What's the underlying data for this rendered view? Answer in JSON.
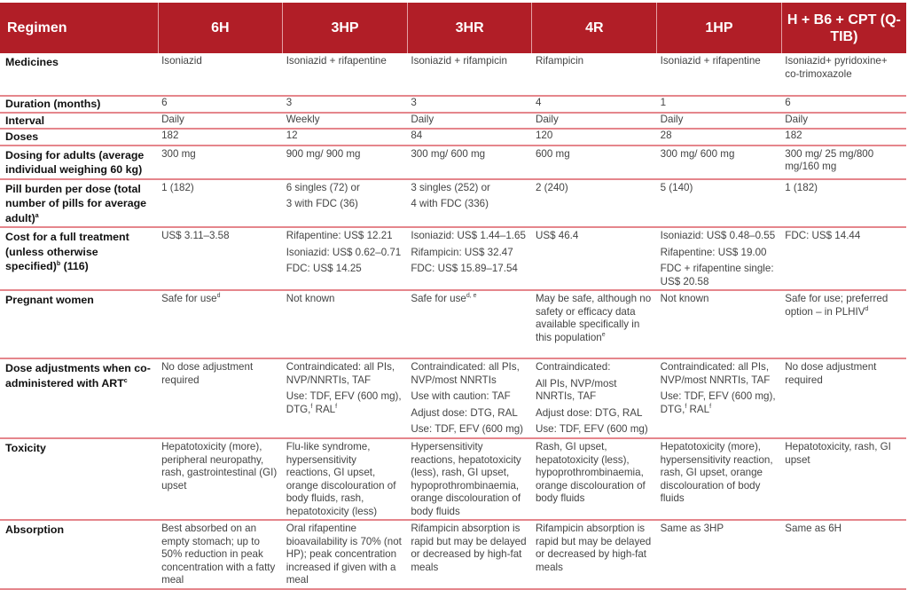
{
  "colors": {
    "header_bg": "#b11e27",
    "row_divider": "#e5868c"
  },
  "header": [
    "Regimen",
    "6H",
    "3HP",
    "3HR",
    "4R",
    "1HP",
    "H + B6 + CPT (Q-TIB)"
  ],
  "rows": [
    {
      "label": [
        [
          "Medicines"
        ]
      ],
      "cells": [
        [
          [
            "Isoniazid"
          ]
        ],
        [
          [
            "Isoniazid + rifapentine"
          ]
        ],
        [
          [
            "Isoniazid + rifampicin"
          ]
        ],
        [
          [
            "Rifampicin"
          ]
        ],
        [
          [
            "Isoniazid + rifapentine"
          ]
        ],
        [
          [
            "Isoniazid+ pyridoxine+ co-trimoxazole"
          ]
        ]
      ]
    },
    {
      "label": [
        [
          "Duration (months)"
        ]
      ],
      "cells": [
        [
          [
            "6"
          ]
        ],
        [
          [
            "3"
          ]
        ],
        [
          [
            "3"
          ]
        ],
        [
          [
            "4"
          ]
        ],
        [
          [
            "1"
          ]
        ],
        [
          [
            "6"
          ]
        ]
      ]
    },
    {
      "label": [
        [
          "Interval"
        ]
      ],
      "cells": [
        [
          [
            "Daily"
          ]
        ],
        [
          [
            "Weekly"
          ]
        ],
        [
          [
            "Daily"
          ]
        ],
        [
          [
            "Daily"
          ]
        ],
        [
          [
            "Daily"
          ]
        ],
        [
          [
            "Daily"
          ]
        ]
      ]
    },
    {
      "label": [
        [
          "Doses"
        ]
      ],
      "cells": [
        [
          [
            "182"
          ]
        ],
        [
          [
            "12"
          ]
        ],
        [
          [
            "84"
          ]
        ],
        [
          [
            "120"
          ]
        ],
        [
          [
            "28"
          ]
        ],
        [
          [
            "182"
          ]
        ]
      ]
    },
    {
      "label": [
        [
          "Dosing for adults (average individual weighing 60 kg)"
        ]
      ],
      "cells": [
        [
          [
            "300 mg"
          ]
        ],
        [
          [
            "900 mg/ 900 mg"
          ]
        ],
        [
          [
            "300 mg/ 600 mg"
          ]
        ],
        [
          [
            "600 mg"
          ]
        ],
        [
          [
            "300 mg/ 600 mg"
          ]
        ],
        [
          [
            "300 mg/ 25 mg/800 mg/160 mg"
          ]
        ]
      ]
    },
    {
      "label": [
        [
          "Pill burden per dose (total number of pills for average adult)",
          {
            "sup": "a"
          }
        ]
      ],
      "cells": [
        [
          [
            "1 (182)"
          ]
        ],
        [
          [
            "6 singles (72) or"
          ],
          [
            "3 with FDC (36)"
          ]
        ],
        [
          [
            "3 singles (252) or"
          ],
          [
            "4 with FDC (336)"
          ]
        ],
        [
          [
            "2 (240)"
          ]
        ],
        [
          [
            "5 (140)"
          ]
        ],
        [
          [
            "1 (182)"
          ]
        ]
      ]
    },
    {
      "label": [
        [
          "Cost for a full treatment (unless otherwise specified)",
          {
            "sup": "b"
          },
          " (116)"
        ]
      ],
      "cells": [
        [
          [
            "US$ 3.11–3.58"
          ]
        ],
        [
          [
            "Rifapentine: US$ 12.21"
          ],
          [
            "Isoniazid: US$ 0.62–0.71"
          ],
          [
            "FDC: US$ 14.25"
          ]
        ],
        [
          [
            "Isoniazid: US$ 1.44–1.65"
          ],
          [
            "Rifampicin: US$ 32.47"
          ],
          [
            "FDC: US$ 15.89–17.54"
          ]
        ],
        [
          [
            "US$ 46.4"
          ]
        ],
        [
          [
            "Isoniazid: US$ 0.48–0.55"
          ],
          [
            "Rifapentine: US$ 19.00"
          ],
          [
            "FDC + rifapentine single: US$ 20.58"
          ]
        ],
        [
          [
            "FDC: US$ 14.44"
          ]
        ]
      ]
    },
    {
      "label": [
        [
          "Pregnant women"
        ]
      ],
      "cells": [
        [
          [
            "Safe for use",
            {
              "sup": "d"
            }
          ]
        ],
        [
          [
            "Not known"
          ]
        ],
        [
          [
            "Safe for use",
            {
              "sup": "d, e"
            }
          ]
        ],
        [
          [
            "May be safe, although no safety or efficacy data available specifically in this population",
            {
              "sup": "e"
            }
          ]
        ],
        [
          [
            "Not known"
          ]
        ],
        [
          [
            "Safe for use; preferred option – in PLHIV",
            {
              "sup": "d"
            }
          ]
        ]
      ]
    },
    {
      "label": [
        [
          "Dose adjustments when co-administered with ART",
          {
            "sup": "c"
          }
        ]
      ],
      "cells": [
        [
          [
            "No dose adjustment required"
          ]
        ],
        [
          [
            "Contraindicated: all PIs, NVP/NNRTIs, TAF"
          ],
          [
            "Use: TDF, EFV (600 mg), DTG,",
            {
              "sup": "f"
            },
            " RAL",
            {
              "sup": "f"
            }
          ]
        ],
        [
          [
            "Contraindicated: all PIs, NVP/most NNRTIs"
          ],
          [
            "Use with caution: TAF"
          ],
          [
            "Adjust dose: DTG, RAL"
          ],
          [
            "Use: TDF, EFV (600 mg)"
          ]
        ],
        [
          [
            "Contraindicated:"
          ],
          [
            "All PIs, NVP/most NNRTIs, TAF"
          ],
          [
            "Adjust dose: DTG, RAL"
          ],
          [
            "Use: TDF, EFV (600 mg)"
          ]
        ],
        [
          [
            "Contraindicated: all PIs, NVP/most NNRTIs, TAF"
          ],
          [
            "Use: TDF, EFV (600 mg), DTG,",
            {
              "sup": "f"
            },
            " RAL",
            {
              "sup": "f"
            }
          ]
        ],
        [
          [
            "No dose adjustment required"
          ]
        ]
      ]
    },
    {
      "label": [
        [
          "Toxicity"
        ]
      ],
      "cells": [
        [
          [
            "Hepatotoxicity (more), peripheral neuropathy, rash, gastrointestinal (GI) upset"
          ]
        ],
        [
          [
            "Flu-like syndrome, hypersensitivity reactions, GI upset, orange discolouration of body fluids, rash, hepatotoxicity (less)"
          ]
        ],
        [
          [
            "Hypersensitivity reactions, hepatotoxicity (less), rash, GI upset, hypoprothrombinaemia, orange discolouration of body fluids"
          ]
        ],
        [
          [
            "Rash, GI upset, hepatotoxicity (less), hypoprothrombinaemia, orange discolouration of body fluids"
          ]
        ],
        [
          [
            "Hepatotoxicity (more), hypersensitivity reaction, rash, GI upset, orange discolouration of body fluids"
          ]
        ],
        [
          [
            "Hepatotoxicity, rash, GI upset"
          ]
        ]
      ]
    },
    {
      "label": [
        [
          "Absorption"
        ]
      ],
      "cells": [
        [
          [
            "Best absorbed on an empty stomach; up to 50% reduction in peak concentration with a fatty meal"
          ]
        ],
        [
          [
            "Oral rifapentine bioavailability is 70% (not HP); peak concentration increased if given with a meal"
          ]
        ],
        [
          [
            "Rifampicin absorption is rapid but may be delayed or decreased by high-fat meals"
          ]
        ],
        [
          [
            "Rifampicin absorption is rapid but may be delayed or decreased by high-fat meals"
          ]
        ],
        [
          [
            "Same as 3HP"
          ]
        ],
        [
          [
            "Same as 6H"
          ]
        ]
      ]
    }
  ]
}
